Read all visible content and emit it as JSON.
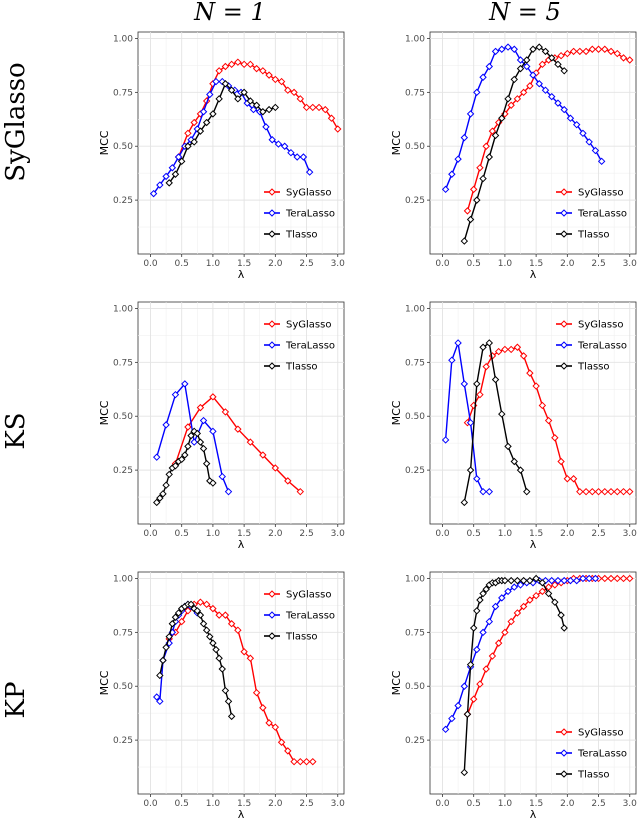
{
  "column_headers": [
    "N = 1",
    "N = 5"
  ],
  "row_headers": [
    "SyGlasso",
    "KS",
    "KP"
  ],
  "series_styles": [
    {
      "name": "SyGlasso",
      "color": "#ff0000"
    },
    {
      "name": "TeraLasso",
      "color": "#0000ff"
    },
    {
      "name": "Tlasso",
      "color": "#000000"
    }
  ],
  "chart_data": [
    {
      "type": "line",
      "row": "SyGlasso",
      "column": "N = 1",
      "xlabel": "λ",
      "ylabel": "MCC",
      "xlim": [
        -0.2,
        3.1
      ],
      "ylim": [
        0.0,
        1.03
      ],
      "xticks": [
        "0.0",
        "0.5",
        "1.0",
        "1.5",
        "2.0",
        "2.5",
        "3.0"
      ],
      "yticks": [
        "0.25",
        "0.50",
        "0.75",
        "1.00"
      ],
      "legend": "bottom-right",
      "series": [
        {
          "name": "SyGlasso",
          "color": "#ff0000",
          "x": [
            0.45,
            0.6,
            0.7,
            0.8,
            0.9,
            1.0,
            1.1,
            1.2,
            1.3,
            1.4,
            1.5,
            1.6,
            1.7,
            1.8,
            1.9,
            2.0,
            2.1,
            2.2,
            2.3,
            2.4,
            2.5,
            2.6,
            2.7,
            2.8,
            2.9,
            3.0
          ],
          "y": [
            0.45,
            0.56,
            0.61,
            0.65,
            0.71,
            0.79,
            0.85,
            0.87,
            0.88,
            0.89,
            0.88,
            0.88,
            0.86,
            0.85,
            0.83,
            0.81,
            0.8,
            0.76,
            0.75,
            0.72,
            0.68,
            0.68,
            0.68,
            0.67,
            0.63,
            0.58
          ]
        },
        {
          "name": "TeraLasso",
          "color": "#0000ff",
          "x": [
            0.05,
            0.15,
            0.25,
            0.35,
            0.45,
            0.55,
            0.65,
            0.75,
            0.85,
            0.95,
            1.05,
            1.15,
            1.25,
            1.35,
            1.45,
            1.55,
            1.65,
            1.75,
            1.85,
            1.95,
            2.05,
            2.15,
            2.25,
            2.35,
            2.45,
            2.55
          ],
          "y": [
            0.28,
            0.32,
            0.36,
            0.4,
            0.45,
            0.5,
            0.53,
            0.58,
            0.66,
            0.74,
            0.8,
            0.8,
            0.78,
            0.76,
            0.75,
            0.7,
            0.67,
            0.66,
            0.59,
            0.53,
            0.51,
            0.5,
            0.47,
            0.45,
            0.45,
            0.38
          ]
        },
        {
          "name": "Tlasso",
          "color": "#000000",
          "x": [
            0.3,
            0.4,
            0.5,
            0.6,
            0.7,
            0.8,
            0.9,
            1.0,
            1.1,
            1.2,
            1.3,
            1.4,
            1.5,
            1.6,
            1.7,
            1.8,
            1.9,
            2.0
          ],
          "y": [
            0.33,
            0.37,
            0.43,
            0.5,
            0.52,
            0.57,
            0.61,
            0.65,
            0.72,
            0.79,
            0.76,
            0.72,
            0.75,
            0.71,
            0.69,
            0.66,
            0.67,
            0.68
          ]
        }
      ]
    },
    {
      "type": "line",
      "row": "SyGlasso",
      "column": "N = 5",
      "xlabel": "λ",
      "ylabel": "MCC",
      "xlim": [
        -0.2,
        3.1
      ],
      "ylim": [
        0.0,
        1.03
      ],
      "xticks": [
        "0.0",
        "0.5",
        "1.0",
        "1.5",
        "2.0",
        "2.5",
        "3.0"
      ],
      "yticks": [
        "0.25",
        "0.50",
        "0.75",
        "1.00"
      ],
      "legend": "bottom-right",
      "series": [
        {
          "name": "SyGlasso",
          "color": "#ff0000",
          "x": [
            0.4,
            0.5,
            0.6,
            0.7,
            0.8,
            0.9,
            1.0,
            1.1,
            1.2,
            1.3,
            1.4,
            1.5,
            1.6,
            1.7,
            1.8,
            1.9,
            2.0,
            2.1,
            2.2,
            2.3,
            2.4,
            2.5,
            2.6,
            2.7,
            2.8,
            2.9,
            3.0
          ],
          "y": [
            0.2,
            0.3,
            0.4,
            0.5,
            0.57,
            0.61,
            0.65,
            0.69,
            0.72,
            0.75,
            0.78,
            0.84,
            0.88,
            0.9,
            0.91,
            0.92,
            0.93,
            0.94,
            0.94,
            0.94,
            0.95,
            0.95,
            0.95,
            0.94,
            0.93,
            0.91,
            0.9
          ]
        },
        {
          "name": "TeraLasso",
          "color": "#0000ff",
          "x": [
            0.05,
            0.15,
            0.25,
            0.35,
            0.45,
            0.55,
            0.65,
            0.75,
            0.85,
            0.95,
            1.05,
            1.15,
            1.25,
            1.35,
            1.45,
            1.55,
            1.65,
            1.75,
            1.85,
            1.95,
            2.05,
            2.15,
            2.25,
            2.35,
            2.45,
            2.55
          ],
          "y": [
            0.3,
            0.37,
            0.44,
            0.54,
            0.65,
            0.75,
            0.82,
            0.87,
            0.94,
            0.95,
            0.96,
            0.95,
            0.9,
            0.87,
            0.83,
            0.79,
            0.76,
            0.73,
            0.7,
            0.67,
            0.63,
            0.6,
            0.56,
            0.52,
            0.48,
            0.43
          ]
        },
        {
          "name": "Tlasso",
          "color": "#000000",
          "x": [
            0.35,
            0.45,
            0.55,
            0.65,
            0.75,
            0.85,
            0.95,
            1.05,
            1.15,
            1.25,
            1.35,
            1.45,
            1.55,
            1.65,
            1.75,
            1.85,
            1.95
          ],
          "y": [
            0.06,
            0.16,
            0.25,
            0.35,
            0.45,
            0.55,
            0.63,
            0.72,
            0.81,
            0.86,
            0.9,
            0.95,
            0.96,
            0.94,
            0.91,
            0.88,
            0.85
          ]
        }
      ]
    },
    {
      "type": "line",
      "row": "KS",
      "column": "N = 1",
      "xlabel": "λ",
      "ylabel": "MCC",
      "xlim": [
        -0.2,
        3.1
      ],
      "ylim": [
        0.0,
        1.03
      ],
      "xticks": [
        "0.0",
        "0.5",
        "1.0",
        "1.5",
        "2.0",
        "2.5",
        "3.0"
      ],
      "yticks": [
        "0.25",
        "0.50",
        "0.75",
        "1.00"
      ],
      "legend": "top-right",
      "series": [
        {
          "name": "SyGlasso",
          "color": "#ff0000",
          "x": [
            0.4,
            0.6,
            0.8,
            1.0,
            1.2,
            1.4,
            1.6,
            1.8,
            2.0,
            2.2,
            2.4
          ],
          "y": [
            0.28,
            0.45,
            0.54,
            0.59,
            0.52,
            0.44,
            0.38,
            0.32,
            0.26,
            0.2,
            0.15
          ]
        },
        {
          "name": "TeraLasso",
          "color": "#0000ff",
          "x": [
            0.1,
            0.25,
            0.4,
            0.55,
            0.7,
            0.85,
            1.0,
            1.15,
            1.25
          ],
          "y": [
            0.31,
            0.46,
            0.6,
            0.65,
            0.38,
            0.48,
            0.43,
            0.22,
            0.15
          ]
        },
        {
          "name": "Tlasso",
          "color": "#000000",
          "x": [
            0.1,
            0.15,
            0.2,
            0.25,
            0.3,
            0.35,
            0.4,
            0.45,
            0.5,
            0.55,
            0.6,
            0.65,
            0.7,
            0.75,
            0.8,
            0.85,
            0.9,
            0.95,
            1.0
          ],
          "y": [
            0.1,
            0.12,
            0.14,
            0.18,
            0.23,
            0.26,
            0.27,
            0.29,
            0.3,
            0.32,
            0.36,
            0.41,
            0.43,
            0.42,
            0.38,
            0.35,
            0.28,
            0.2,
            0.19
          ]
        }
      ]
    },
    {
      "type": "line",
      "row": "KS",
      "column": "N = 5",
      "xlabel": "λ",
      "ylabel": "MCC",
      "xlim": [
        -0.2,
        3.1
      ],
      "ylim": [
        0.0,
        1.03
      ],
      "xticks": [
        "0.0",
        "0.5",
        "1.0",
        "1.5",
        "2.0",
        "2.5",
        "3.0"
      ],
      "yticks": [
        "0.25",
        "0.50",
        "0.75",
        "1.00"
      ],
      "legend": "top-right",
      "series": [
        {
          "name": "SyGlasso",
          "color": "#ff0000",
          "x": [
            0.4,
            0.5,
            0.6,
            0.7,
            0.8,
            0.9,
            1.0,
            1.1,
            1.2,
            1.3,
            1.4,
            1.5,
            1.6,
            1.7,
            1.8,
            1.9,
            2.0,
            2.1,
            2.2,
            2.3,
            2.4,
            2.5,
            2.6,
            2.7,
            2.8,
            2.9,
            3.0
          ],
          "y": [
            0.47,
            0.55,
            0.6,
            0.73,
            0.78,
            0.8,
            0.81,
            0.81,
            0.82,
            0.78,
            0.7,
            0.64,
            0.55,
            0.48,
            0.4,
            0.29,
            0.21,
            0.21,
            0.15,
            0.15,
            0.15,
            0.15,
            0.15,
            0.15,
            0.15,
            0.15,
            0.15
          ]
        },
        {
          "name": "TeraLasso",
          "color": "#0000ff",
          "x": [
            0.05,
            0.15,
            0.25,
            0.35,
            0.45,
            0.55,
            0.65,
            0.75
          ],
          "y": [
            0.39,
            0.76,
            0.84,
            0.65,
            0.47,
            0.21,
            0.15,
            0.15
          ]
        },
        {
          "name": "Tlasso",
          "color": "#000000",
          "x": [
            0.35,
            0.45,
            0.55,
            0.65,
            0.75,
            0.85,
            0.95,
            1.05,
            1.15,
            1.25,
            1.35
          ],
          "y": [
            0.1,
            0.25,
            0.65,
            0.82,
            0.84,
            0.67,
            0.51,
            0.36,
            0.29,
            0.25,
            0.15
          ]
        }
      ]
    },
    {
      "type": "line",
      "row": "KP",
      "column": "N = 1",
      "xlabel": "λ",
      "ylabel": "MCC",
      "xlim": [
        -0.2,
        3.1
      ],
      "ylim": [
        0.0,
        1.03
      ],
      "xticks": [
        "0.0",
        "0.5",
        "1.0",
        "1.5",
        "2.0",
        "2.5",
        "3.0"
      ],
      "yticks": [
        "0.25",
        "0.50",
        "0.75",
        "1.00"
      ],
      "legend": "top-right",
      "series": [
        {
          "name": "SyGlasso",
          "color": "#ff0000",
          "x": [
            0.3,
            0.4,
            0.5,
            0.6,
            0.7,
            0.8,
            0.9,
            1.0,
            1.1,
            1.2,
            1.3,
            1.4,
            1.5,
            1.6,
            1.7,
            1.8,
            1.9,
            2.0,
            2.1,
            2.2,
            2.3,
            2.4,
            2.5,
            2.6
          ],
          "y": [
            0.72,
            0.75,
            0.8,
            0.85,
            0.88,
            0.89,
            0.88,
            0.86,
            0.83,
            0.83,
            0.79,
            0.76,
            0.66,
            0.63,
            0.47,
            0.4,
            0.33,
            0.31,
            0.24,
            0.2,
            0.15,
            0.15,
            0.15,
            0.15
          ]
        },
        {
          "name": "TeraLasso",
          "color": "#0000ff",
          "x": [
            0.1,
            0.15,
            0.2,
            0.3,
            0.35,
            0.4,
            0.45,
            0.5,
            0.55,
            0.6,
            0.65,
            0.7,
            0.75
          ],
          "y": [
            0.45,
            0.43,
            0.62,
            0.7,
            0.75,
            0.8,
            0.83,
            0.85,
            0.87,
            0.88,
            0.87,
            0.86,
            0.84
          ]
        },
        {
          "name": "Tlasso",
          "color": "#000000",
          "x": [
            0.15,
            0.2,
            0.25,
            0.3,
            0.35,
            0.4,
            0.45,
            0.5,
            0.55,
            0.6,
            0.65,
            0.7,
            0.75,
            0.8,
            0.85,
            0.9,
            0.95,
            1.0,
            1.05,
            1.1,
            1.15,
            1.2,
            1.25,
            1.3
          ],
          "y": [
            0.55,
            0.62,
            0.68,
            0.73,
            0.79,
            0.82,
            0.84,
            0.86,
            0.87,
            0.88,
            0.88,
            0.86,
            0.85,
            0.83,
            0.79,
            0.76,
            0.73,
            0.7,
            0.67,
            0.63,
            0.58,
            0.48,
            0.43,
            0.36
          ]
        }
      ]
    },
    {
      "type": "line",
      "row": "KP",
      "column": "N = 5",
      "xlabel": "λ",
      "ylabel": "MCC",
      "xlim": [
        -0.2,
        3.1
      ],
      "ylim": [
        0.0,
        1.03
      ],
      "xticks": [
        "0.0",
        "0.5",
        "1.0",
        "1.5",
        "2.0",
        "2.5",
        "3.0"
      ],
      "yticks": [
        "0.25",
        "0.50",
        "0.75",
        "1.00"
      ],
      "legend": "bottom-right",
      "series": [
        {
          "name": "SyGlasso",
          "color": "#ff0000",
          "x": [
            0.4,
            0.5,
            0.6,
            0.7,
            0.8,
            0.9,
            1.0,
            1.1,
            1.2,
            1.3,
            1.4,
            1.5,
            1.6,
            1.7,
            1.8,
            1.9,
            2.0,
            2.1,
            2.2,
            2.3,
            2.4,
            2.5,
            2.6,
            2.7,
            2.8,
            2.9,
            3.0
          ],
          "y": [
            0.37,
            0.44,
            0.51,
            0.58,
            0.64,
            0.7,
            0.75,
            0.8,
            0.84,
            0.87,
            0.9,
            0.92,
            0.94,
            0.96,
            0.97,
            0.98,
            0.99,
            1.0,
            1.0,
            1.0,
            1.0,
            1.0,
            1.0,
            1.0,
            1.0,
            1.0,
            1.0
          ]
        },
        {
          "name": "TeraLasso",
          "color": "#0000ff",
          "x": [
            0.05,
            0.15,
            0.25,
            0.35,
            0.45,
            0.55,
            0.65,
            0.75,
            0.85,
            0.95,
            1.05,
            1.15,
            1.25,
            1.35,
            1.45,
            1.55,
            1.65,
            1.75,
            1.85,
            1.95,
            2.05,
            2.15,
            2.25,
            2.35,
            2.45
          ],
          "y": [
            0.3,
            0.35,
            0.41,
            0.5,
            0.59,
            0.67,
            0.75,
            0.8,
            0.87,
            0.91,
            0.94,
            0.96,
            0.97,
            0.98,
            0.98,
            0.99,
            0.99,
            0.99,
            0.99,
            0.99,
            0.99,
            0.99,
            1.0,
            1.0,
            1.0
          ]
        },
        {
          "name": "Tlasso",
          "color": "#000000",
          "x": [
            0.35,
            0.4,
            0.45,
            0.5,
            0.55,
            0.6,
            0.65,
            0.7,
            0.75,
            0.8,
            0.85,
            0.9,
            0.95,
            1.0,
            1.1,
            1.2,
            1.3,
            1.4,
            1.5,
            1.6,
            1.7,
            1.8,
            1.9,
            1.95
          ],
          "y": [
            0.1,
            0.37,
            0.6,
            0.77,
            0.85,
            0.9,
            0.93,
            0.95,
            0.97,
            0.98,
            0.98,
            0.99,
            0.99,
            0.99,
            0.99,
            0.99,
            0.99,
            0.99,
            1.0,
            0.98,
            0.93,
            0.89,
            0.83,
            0.77
          ]
        }
      ]
    }
  ]
}
